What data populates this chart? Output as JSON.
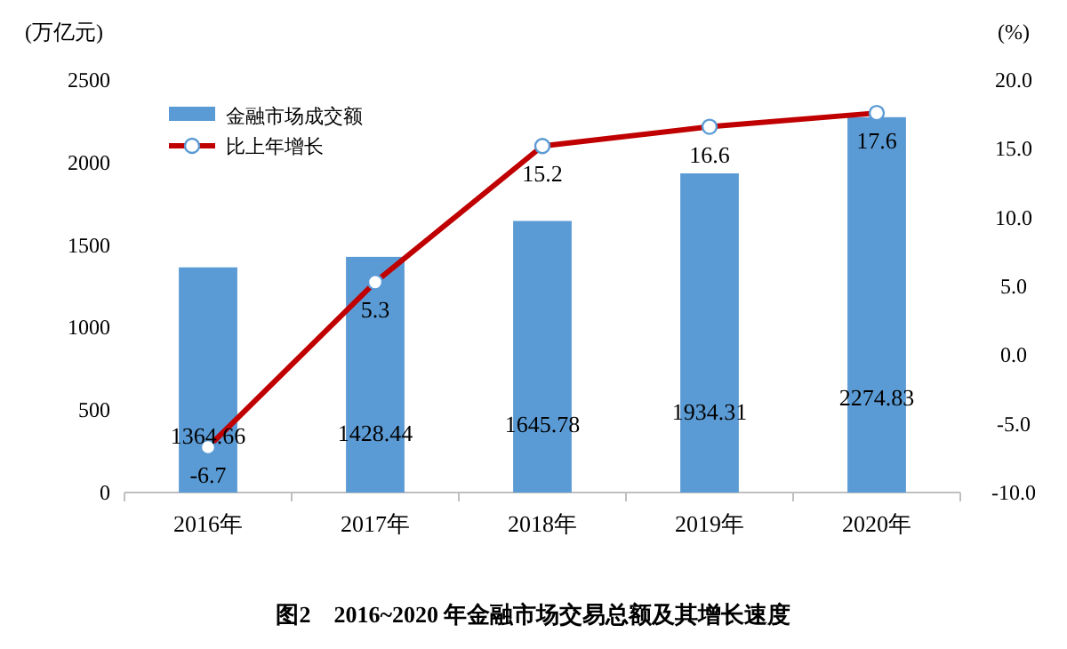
{
  "chart_data": {
    "type": "bar",
    "title": "图2　2016~2020 年金融市场交易总额及其增长速度",
    "ylabel": "(万亿元)",
    "y2label": "(%)",
    "categories": [
      "2016年",
      "2017年",
      "2018年",
      "2019年",
      "2020年"
    ],
    "series": [
      {
        "name": "金融市场成交额",
        "color": "#5b9bd5",
        "values": [
          1364.66,
          1428.44,
          1645.78,
          1934.31,
          2274.83
        ]
      },
      {
        "name": "比上年增长",
        "type": "line",
        "axis": "y2",
        "color": "#c00000",
        "values": [
          -6.7,
          5.3,
          15.2,
          16.6,
          17.6
        ]
      }
    ],
    "ylim": [
      0,
      2500
    ],
    "yticks": [
      0,
      500,
      1000,
      1500,
      2000,
      2500
    ],
    "y2lim": [
      -10,
      20
    ],
    "y2ticks": [
      {
        "value": -10,
        "label": "-10.0"
      },
      {
        "value": -5,
        "label": "-5.0"
      },
      {
        "value": 0,
        "label": "0.0"
      },
      {
        "value": 5,
        "label": "5.0"
      },
      {
        "value": 10,
        "label": "10.0"
      },
      {
        "value": 15,
        "label": "15.0"
      },
      {
        "value": 20,
        "label": "20.0"
      }
    ],
    "marker": "circle",
    "legend": "top left",
    "data_labels": true
  }
}
